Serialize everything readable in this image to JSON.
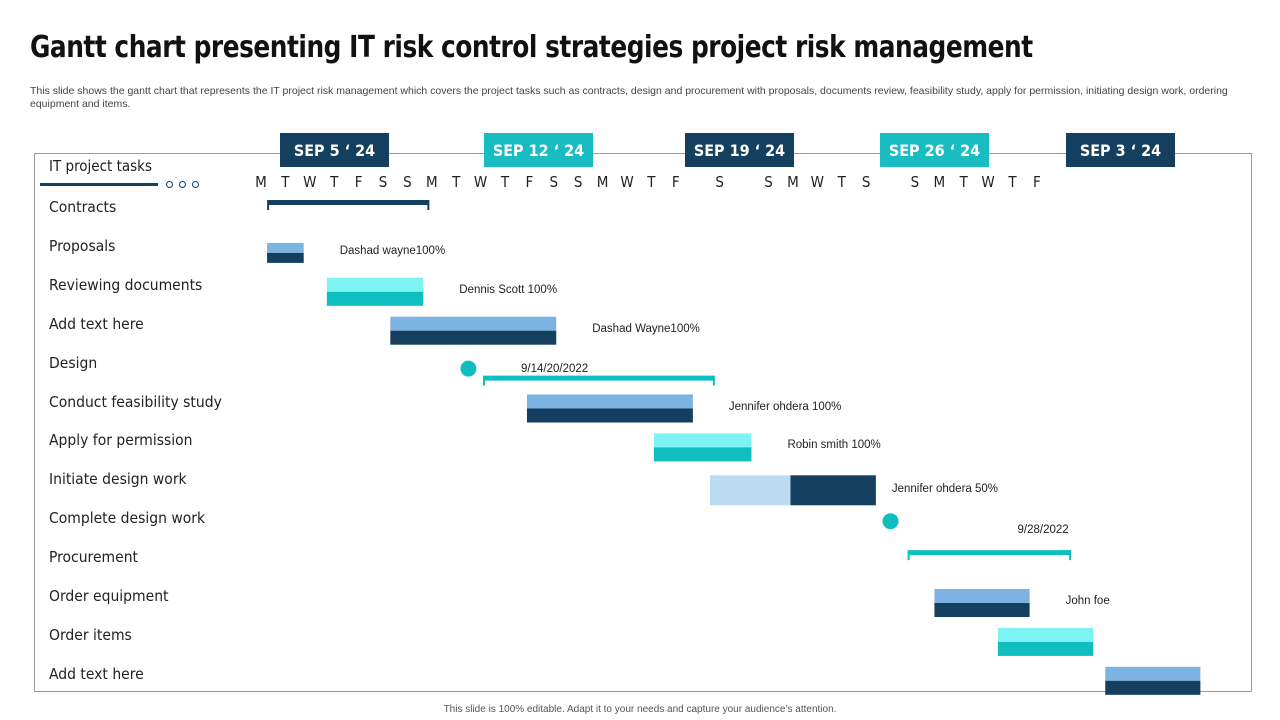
{
  "title": "Gantt chart presenting IT risk control strategies project risk management",
  "subtitle": "This slide shows the gantt chart that represents the IT project risk management which covers the project tasks such as contracts, design and procurement with proposals, documents review, feasibility study, apply for permission, initiating design work, ordering equipment and items.",
  "footer": "This slide is 100% editable. Adapt it to your needs and capture your audience’s attention.",
  "colors": {
    "navy": "#143f5e",
    "light_blue": "#7db3e2",
    "pale_blue": "#bcdaf2",
    "teal": "#0fbfbf",
    "light_teal": "#7ef3f3",
    "week_navy": "#143f5e",
    "week_teal": "#19bcc0"
  },
  "chart_data": {
    "type": "gantt",
    "header_label": "IT project tasks",
    "weeks": [
      {
        "label": "SEP 5 ‘ 24",
        "style": "navy"
      },
      {
        "label": "SEP 12 ‘ 24",
        "style": "teal"
      },
      {
        "label": "SEP 19 ‘ 24",
        "style": "navy"
      },
      {
        "label": "SEP 26 ‘ 24",
        "style": "teal"
      },
      {
        "label": "SEP 3 ‘ 24",
        "style": "navy"
      }
    ],
    "day_letters": [
      "M",
      "T",
      "W",
      "T",
      "F",
      "S",
      "S",
      "M",
      "T",
      "W",
      "T",
      "F",
      "S",
      "S",
      "M",
      "W",
      "T",
      "F",
      "S",
      "S",
      "M",
      "W",
      "T",
      "S",
      "S",
      "M",
      "T",
      "W",
      "T",
      "F"
    ],
    "day_units": [
      0,
      1,
      2,
      3,
      4,
      5,
      6,
      7,
      8,
      9,
      10,
      11,
      12,
      13,
      14,
      15,
      16,
      17,
      18.8,
      20.8,
      21.8,
      22.8,
      23.8,
      24.8,
      26.8,
      27.8,
      28.8,
      29.8,
      30.8,
      31.8
    ],
    "tasks": [
      {
        "label": "Contracts",
        "kind": "bracket",
        "start": 0.25,
        "end": 6.9,
        "color": "navy"
      },
      {
        "label": "Proposals",
        "kind": "bar",
        "start": 0.25,
        "end": 1.75,
        "top": "light_blue",
        "bottom": "navy",
        "note": "Dashad wayne100%"
      },
      {
        "label": "Reviewing documents",
        "kind": "bar",
        "start": 2.7,
        "end": 6.65,
        "top": "light_teal",
        "bottom": "teal",
        "note": "Dennis Scott 100%"
      },
      {
        "label": "Add text here",
        "kind": "bar",
        "start": 5.3,
        "end": 12.1,
        "top": "light_blue",
        "bottom": "navy",
        "note": "Dashad Wayne100%"
      },
      {
        "label": "Design",
        "kind": "milestone-bracket",
        "milestone": 8.5,
        "start": 9.1,
        "end": 18.6,
        "color": "teal",
        "note": "9/14/20/2022"
      },
      {
        "label": "Conduct feasibility study",
        "kind": "bar",
        "start": 10.9,
        "end": 17.7,
        "top": "light_blue",
        "bottom": "navy",
        "note": "Jennifer ohdera 100%"
      },
      {
        "label": "Apply for permission",
        "kind": "bar",
        "start": 16.1,
        "end": 20.1,
        "top": "light_teal",
        "bottom": "teal",
        "note": "Robin smith 100%"
      },
      {
        "label": "Initiate design work",
        "kind": "split",
        "start": 18.4,
        "mid": 21.7,
        "end": 25.2,
        "left": "pale_blue",
        "right": "navy",
        "note": "Jennifer ohdera 50%"
      },
      {
        "label": "Complete design work",
        "kind": "milestone-label",
        "milestone": 25.8,
        "note": "9/28/2022"
      },
      {
        "label": "Procurement",
        "kind": "bracket",
        "start": 26.5,
        "end": 33.2,
        "color": "teal"
      },
      {
        "label": "Order equipment",
        "kind": "bar",
        "start": 27.6,
        "end": 31.5,
        "top": "light_blue",
        "bottom": "navy",
        "note": "John foe"
      },
      {
        "label": "Order items",
        "kind": "bar",
        "start": 30.2,
        "end": 34.1,
        "top": "light_teal",
        "bottom": "teal",
        "note": ""
      },
      {
        "label": "Add text here",
        "kind": "bar",
        "start": 34.6,
        "end": 38.5,
        "top": "light_blue",
        "bottom": "navy",
        "note": ""
      }
    ]
  }
}
